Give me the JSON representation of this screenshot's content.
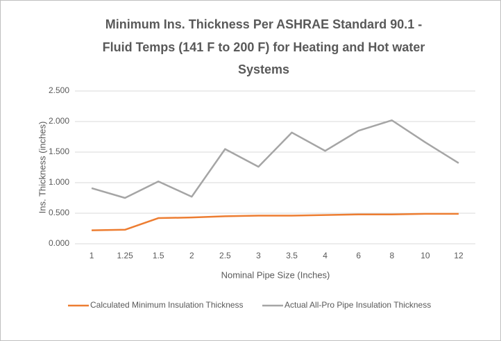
{
  "chart_data": {
    "type": "line",
    "title": [
      "Minimum Ins. Thickness Per ASHRAE Standard 90.1 -",
      "Fluid Temps (141 F to 200 F) for Heating and Hot water",
      "Systems"
    ],
    "x_label": "Nominal Pipe Size (Inches)",
    "y_label": "Ins. Thickness (inches)",
    "categories": [
      "1",
      "1.25",
      "1.5",
      "2",
      "2.5",
      "3",
      "3.5",
      "4",
      "6",
      "8",
      "10",
      "12"
    ],
    "series": [
      {
        "name": "Calculated Minimum Insulation Thickness",
        "color": "#ed7d31",
        "values": [
          0.22,
          0.23,
          0.42,
          0.43,
          0.45,
          0.46,
          0.46,
          0.47,
          0.48,
          0.48,
          0.49,
          0.49
        ]
      },
      {
        "name": "Actual All-Pro Pipe Insulation Thickness",
        "color": "#a5a5a5",
        "values": [
          0.91,
          0.75,
          1.02,
          0.77,
          1.55,
          1.26,
          1.82,
          1.52,
          1.85,
          2.02,
          1.66,
          1.32
        ]
      }
    ],
    "ylim": [
      0,
      2.5
    ],
    "yticks": [
      {
        "value": 0,
        "label": "0.000"
      },
      {
        "value": 0.5,
        "label": "0.500"
      },
      {
        "value": 1,
        "label": "1.000"
      },
      {
        "value": 1.5,
        "label": "1.500"
      },
      {
        "value": 2,
        "label": "2.000"
      },
      {
        "value": 2.5,
        "label": "2.500"
      }
    ],
    "grid": true,
    "legend": "bottom"
  }
}
